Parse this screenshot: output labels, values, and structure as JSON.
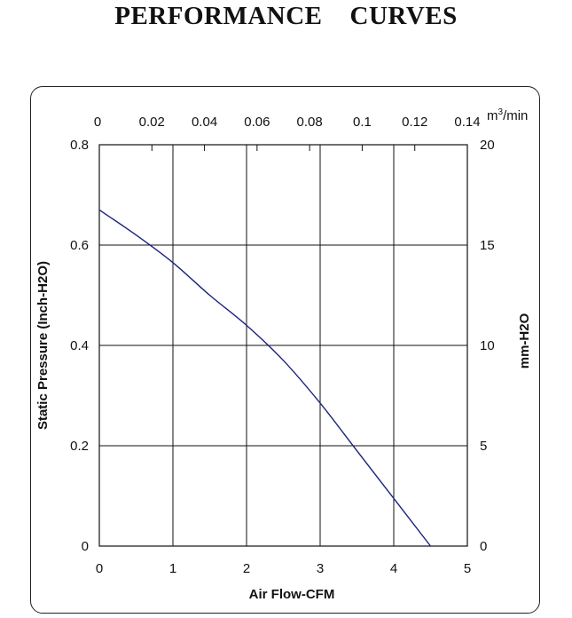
{
  "page": {
    "title": "PERFORMANCE    CURVES"
  },
  "chart_data": {
    "type": "line",
    "x_label": "Air Flow-CFM",
    "y_label": "Static Pressure (Inch-H2O)",
    "y2_label": "mm-H2O",
    "top_axis_unit_base": "m",
    "top_axis_unit_sup": "3",
    "top_axis_unit_rest": "/min",
    "xlim": [
      0,
      5
    ],
    "ylim": [
      0,
      0.8
    ],
    "x_ticks": [
      "0",
      "1",
      "2",
      "3",
      "4",
      "5"
    ],
    "y_ticks": [
      "0",
      "0.2",
      "0.4",
      "0.6",
      "0.8"
    ],
    "top_ticks": [
      "0",
      "0.02",
      "0.04",
      "0.06",
      "0.08",
      "0.1",
      "0.12",
      "0.14"
    ],
    "right_ticks": [
      "0",
      "5",
      "10",
      "15",
      "20"
    ],
    "grid": true,
    "line_color": "#1a237e",
    "series": [
      {
        "x": [
          0,
          0.5,
          1.0,
          1.5,
          2.0,
          2.5,
          3.0,
          3.5,
          4.0,
          4.5
        ],
        "y": [
          0.67,
          0.62,
          0.565,
          0.5,
          0.44,
          0.37,
          0.285,
          0.19,
          0.095,
          0.0
        ]
      }
    ]
  }
}
